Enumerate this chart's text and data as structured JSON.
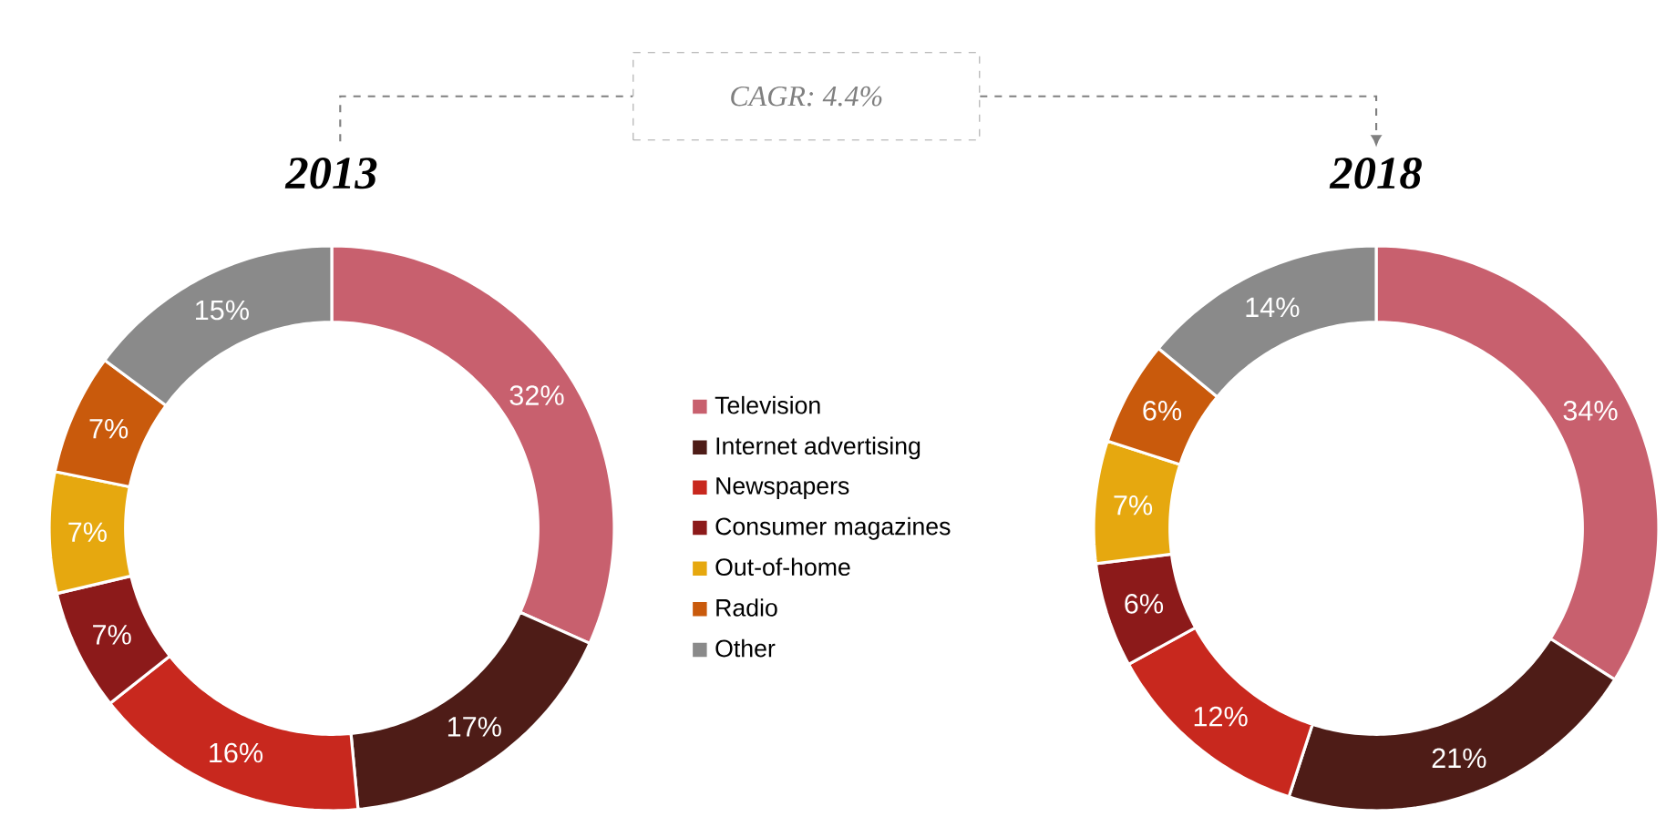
{
  "chart_data": [
    {
      "type": "donut",
      "title": "2013",
      "categories": [
        "Television",
        "Internet advertising",
        "Newspapers",
        "Consumer magazines",
        "Out-of-home",
        "Radio",
        "Other"
      ],
      "values": [
        32,
        17,
        16,
        7,
        7,
        7,
        15
      ],
      "value_labels": [
        "32%",
        "17%",
        "16%",
        "7%",
        "7%",
        "7%",
        "15%"
      ],
      "colors": [
        "#c8606e",
        "#4e1c17",
        "#c8281e",
        "#8c1a1a",
        "#e6a80f",
        "#c95a0c",
        "#8a8a8a"
      ],
      "legend": "right",
      "annotations": [
        "CAGR: 4.4%"
      ]
    },
    {
      "type": "donut",
      "title": "2018",
      "categories": [
        null,
        null,
        null,
        null,
        null,
        null,
        null
      ],
      "values": [
        34,
        21,
        12,
        6,
        7,
        6,
        14
      ],
      "value_labels": [
        "34%",
        "21%",
        "12%",
        "6%",
        "7%",
        "6%",
        "14%"
      ],
      "colors": [
        "#c8606e",
        "#4e1c17",
        "#c8281e",
        "#8c1a1a",
        "#e6a80f",
        "#c95a0c",
        "#8a8a8a"
      ]
    }
  ]
}
